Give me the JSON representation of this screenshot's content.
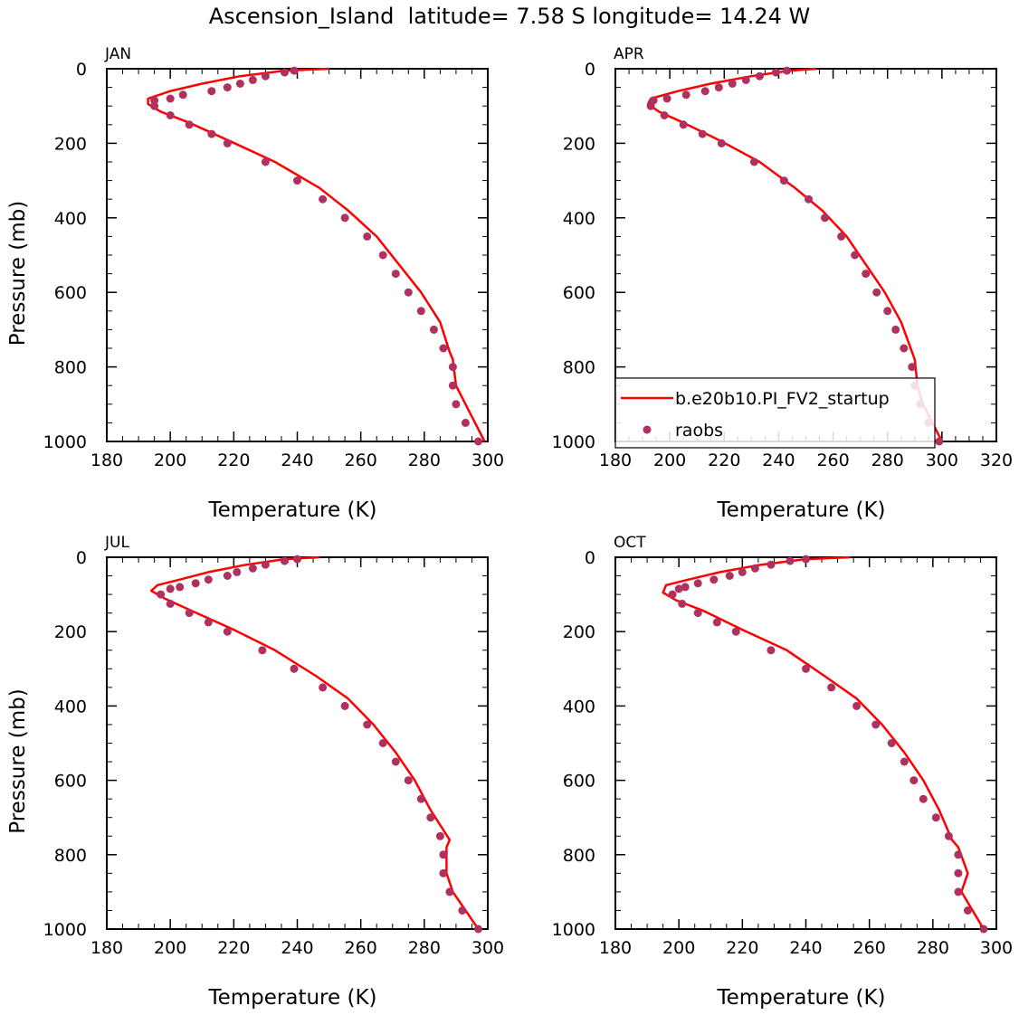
{
  "figure": {
    "title": "Ascension_Island  latitude= 7.58 S longitude= 14.24 W"
  },
  "colors": {
    "model": "#ff0000",
    "obs": "#b03060",
    "axis": "#000000"
  },
  "chart_data": [
    {
      "type": "line",
      "panel_label": "JAN",
      "xlabel": "Temperature (K)",
      "ylabel": "Pressure (mb)",
      "xlim": [
        180,
        300
      ],
      "ylim": [
        0,
        1000
      ],
      "y_inverted": true,
      "xticks": [
        180,
        200,
        220,
        240,
        260,
        280,
        300
      ],
      "yticks": [
        0,
        200,
        400,
        600,
        800,
        1000
      ],
      "series": [
        {
          "name": "b.e20b10.PI_FV2_startup",
          "kind": "line",
          "x": [
            250,
            236,
            222,
            210,
            200,
            193,
            193,
            197,
            206,
            219,
            233,
            247,
            256,
            265,
            272,
            279,
            285,
            288,
            289,
            290,
            293,
            299
          ],
          "y": [
            0,
            5,
            20,
            40,
            60,
            80,
            95,
            115,
            145,
            195,
            250,
            320,
            380,
            450,
            525,
            600,
            680,
            760,
            780,
            850,
            900,
            1000
          ]
        },
        {
          "name": "raobs",
          "kind": "markers",
          "x": [
            239,
            236,
            230,
            226,
            222,
            218,
            213,
            204,
            200,
            195,
            195,
            200,
            206,
            213,
            218,
            230,
            240,
            248,
            255,
            262,
            267,
            271,
            275,
            279,
            283,
            286,
            289,
            289,
            290,
            293,
            297
          ],
          "y": [
            5,
            10,
            20,
            30,
            40,
            50,
            60,
            70,
            80,
            85,
            100,
            125,
            150,
            175,
            200,
            250,
            300,
            350,
            400,
            450,
            500,
            550,
            600,
            650,
            700,
            750,
            800,
            850,
            900,
            950,
            1000
          ]
        }
      ]
    },
    {
      "type": "line",
      "panel_label": "APR",
      "xlabel": "Temperature (K)",
      "ylabel": "",
      "xlim": [
        180,
        320
      ],
      "ylim": [
        0,
        1000
      ],
      "y_inverted": true,
      "xticks": [
        180,
        200,
        220,
        240,
        260,
        280,
        300,
        320
      ],
      "yticks": [
        0,
        200,
        400,
        600,
        800,
        1000
      ],
      "legend": {
        "placement": "bottom-left",
        "entries": [
          "b.e20b10.PI_FV2_startup",
          "raobs"
        ]
      },
      "series": [
        {
          "name": "b.e20b10.PI_FV2_startup",
          "kind": "line",
          "x": [
            254,
            244,
            230,
            215,
            203,
            193,
            192,
            196,
            205,
            219,
            233,
            246,
            256,
            265,
            272,
            279,
            285,
            289,
            290,
            291,
            293,
            300
          ],
          "y": [
            0,
            5,
            20,
            40,
            60,
            80,
            95,
            115,
            145,
            195,
            250,
            320,
            380,
            450,
            525,
            600,
            680,
            760,
            780,
            850,
            900,
            1000
          ]
        },
        {
          "name": "raobs",
          "kind": "markers",
          "x": [
            243,
            239,
            233,
            228,
            223,
            218,
            213,
            206,
            199,
            194,
            193,
            198,
            205,
            212,
            219,
            231,
            242,
            251,
            257,
            263,
            268,
            272,
            276,
            280,
            283,
            286,
            289,
            290,
            292,
            295,
            299
          ],
          "y": [
            5,
            10,
            20,
            30,
            40,
            50,
            60,
            70,
            80,
            85,
            100,
            125,
            150,
            175,
            200,
            250,
            300,
            350,
            400,
            450,
            500,
            550,
            600,
            650,
            700,
            750,
            800,
            850,
            900,
            950,
            1000
          ]
        }
      ]
    },
    {
      "type": "line",
      "panel_label": "JUL",
      "xlabel": "Temperature (K)",
      "ylabel": "Pressure (mb)",
      "xlim": [
        180,
        300
      ],
      "ylim": [
        0,
        1000
      ],
      "y_inverted": true,
      "xticks": [
        180,
        200,
        220,
        240,
        260,
        280,
        300
      ],
      "yticks": [
        0,
        200,
        400,
        600,
        800,
        1000
      ],
      "series": [
        {
          "name": "b.e20b10.PI_FV2_startup",
          "kind": "line",
          "x": [
            247,
            236,
            224,
            212,
            203,
            196,
            194,
            198,
            207,
            220,
            233,
            246,
            256,
            264,
            271,
            277,
            282,
            288,
            287,
            287,
            289,
            297
          ],
          "y": [
            0,
            5,
            20,
            40,
            60,
            75,
            90,
            110,
            145,
            195,
            250,
            320,
            380,
            450,
            525,
            600,
            680,
            760,
            780,
            850,
            900,
            1000
          ]
        },
        {
          "name": "raobs",
          "kind": "markers",
          "x": [
            240,
            236,
            230,
            226,
            221,
            218,
            212,
            208,
            203,
            200,
            197,
            200,
            206,
            212,
            218,
            229,
            239,
            248,
            255,
            262,
            267,
            271,
            275,
            279,
            282,
            285,
            286,
            286,
            288,
            292,
            297
          ],
          "y": [
            5,
            10,
            20,
            30,
            40,
            50,
            60,
            70,
            80,
            85,
            100,
            125,
            150,
            175,
            200,
            250,
            300,
            350,
            400,
            450,
            500,
            550,
            600,
            650,
            700,
            750,
            800,
            850,
            900,
            950,
            1000
          ]
        }
      ]
    },
    {
      "type": "line",
      "panel_label": "OCT",
      "xlabel": "Temperature (K)",
      "ylabel": "",
      "xlim": [
        180,
        300
      ],
      "ylim": [
        0,
        1000
      ],
      "y_inverted": true,
      "xticks": [
        180,
        200,
        220,
        240,
        260,
        280,
        300
      ],
      "yticks": [
        0,
        200,
        400,
        600,
        800,
        1000
      ],
      "series": [
        {
          "name": "b.e20b10.PI_FV2_startup",
          "kind": "line",
          "x": [
            254,
            240,
            226,
            213,
            203,
            196,
            195,
            199,
            208,
            220,
            234,
            246,
            256,
            264,
            271,
            277,
            282,
            286,
            288,
            291,
            289,
            296
          ],
          "y": [
            0,
            5,
            20,
            40,
            60,
            75,
            95,
            115,
            145,
            195,
            250,
            320,
            380,
            450,
            525,
            600,
            680,
            760,
            780,
            850,
            900,
            1000
          ]
        },
        {
          "name": "raobs",
          "kind": "markers",
          "x": [
            240,
            235,
            229,
            224,
            220,
            216,
            211,
            206,
            202,
            200,
            198,
            201,
            206,
            212,
            218,
            229,
            240,
            248,
            256,
            262,
            267,
            271,
            274,
            277,
            281,
            285,
            288,
            288,
            288,
            291,
            296
          ],
          "y": [
            5,
            10,
            20,
            30,
            40,
            50,
            60,
            70,
            80,
            85,
            100,
            125,
            150,
            175,
            200,
            250,
            300,
            350,
            400,
            450,
            500,
            550,
            600,
            650,
            700,
            750,
            800,
            850,
            900,
            950,
            1000
          ]
        }
      ]
    }
  ]
}
